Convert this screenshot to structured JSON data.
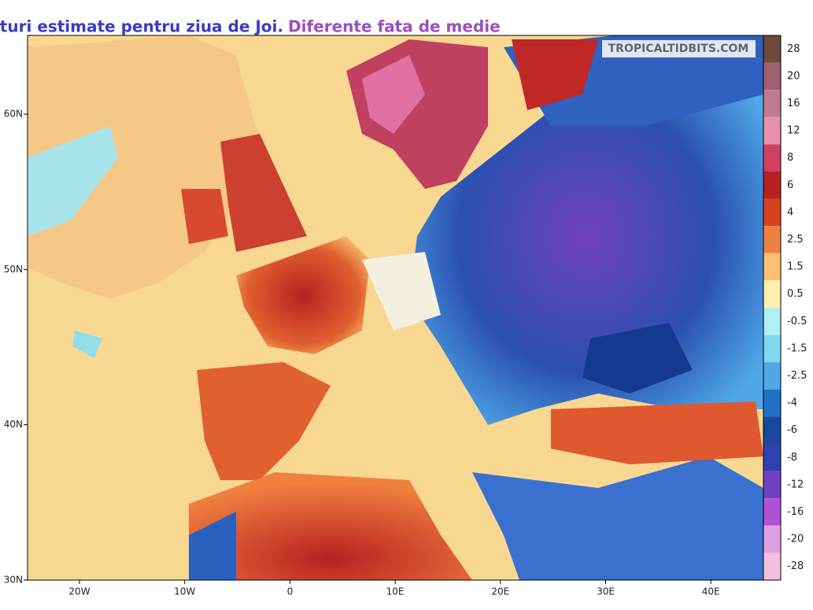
{
  "title": {
    "main": "Temperaturi estimate pentru ziua de Joi.",
    "sub": "Diferente fata de medie"
  },
  "watermark": "TROPICALTIDBITS.COM",
  "lat_labels": [
    "60N",
    "50N",
    "40N",
    "30N"
  ],
  "lon_labels": [
    "20W",
    "10W",
    "0",
    "10E",
    "20E",
    "30E",
    "40E"
  ],
  "colorbar": {
    "ticks": [
      28,
      20,
      16,
      12,
      8,
      6,
      4,
      2.5,
      1.5,
      0.5,
      -0.5,
      -1.5,
      -2.5,
      -4,
      -6,
      -8,
      -12,
      -16,
      -20,
      -28
    ],
    "colors": [
      "#6e4a3a",
      "#a06070",
      "#c07a90",
      "#e890b0",
      "#d04060",
      "#b82020",
      "#d84020",
      "#f08040",
      "#f8c070",
      "#fff0b0",
      "#b0f0f0",
      "#80d8f0",
      "#50a8e8",
      "#2070c8",
      "#1848a0",
      "#3040b0",
      "#7040c0",
      "#b050d8",
      "#e0a0e0",
      "#f0c0e0"
    ]
  }
}
